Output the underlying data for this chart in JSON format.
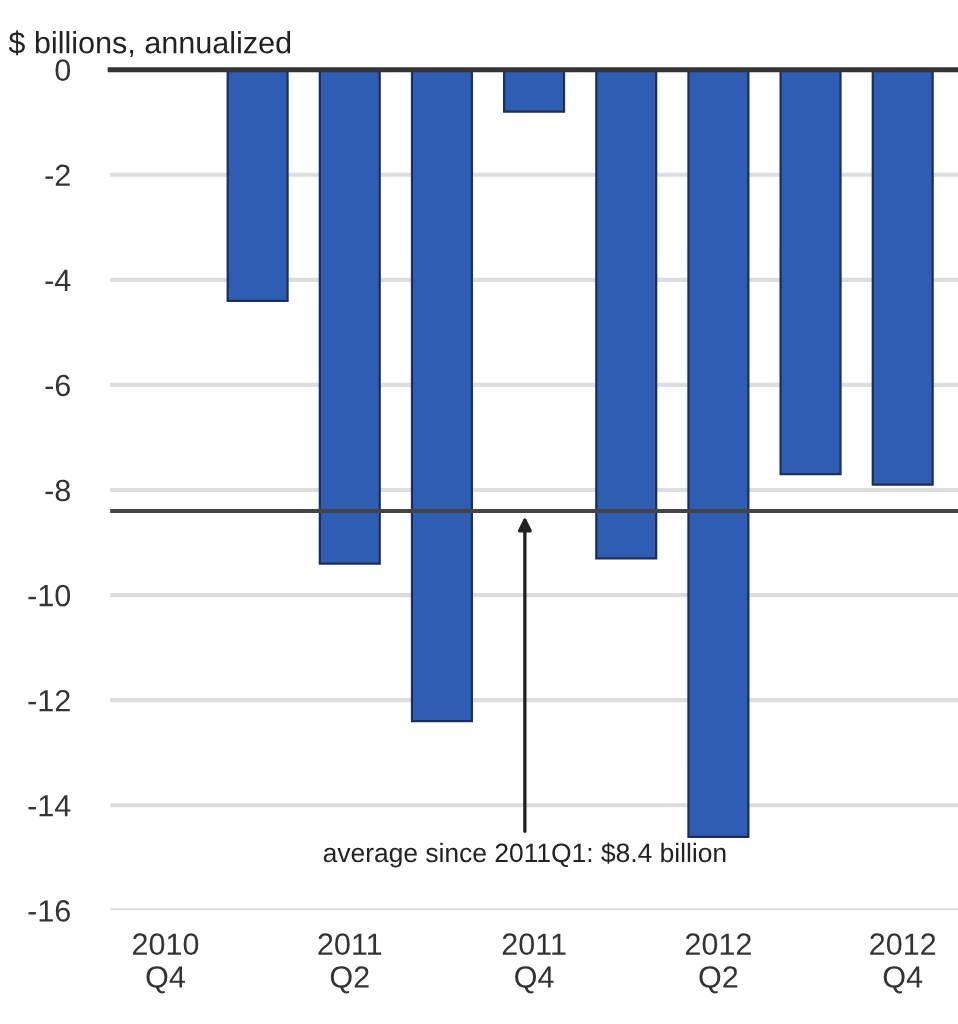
{
  "chart_data": {
    "type": "bar",
    "ylabel": "$ billions, annualized",
    "categories": [
      "2010\nQ4",
      null,
      "2011\nQ2",
      null,
      "2011\nQ4",
      null,
      "2012\nQ2",
      null,
      "2012\nQ4"
    ],
    "values": [
      null,
      -4.4,
      -9.4,
      -12.4,
      -0.8,
      -9.3,
      -14.6,
      -7.7,
      -7.9
    ],
    "color": "#2f5db3",
    "ylim": [
      -16,
      0
    ],
    "yticks": [
      {
        "value": 0,
        "label": "0"
      },
      {
        "value": -2,
        "label": "-2"
      },
      {
        "value": -4,
        "label": "-4"
      },
      {
        "value": -6,
        "label": "-6"
      },
      {
        "value": -8,
        "label": "-8"
      },
      {
        "value": -10,
        "label": "-10"
      },
      {
        "value": -12,
        "label": "-12"
      },
      {
        "value": -14,
        "label": "-14"
      },
      {
        "value": -16,
        "label": "-16"
      }
    ],
    "grid": "y",
    "ref_lines": [
      {
        "axis": "y",
        "value": -8.4,
        "color": "#444444"
      }
    ],
    "annotations": [
      "average since 2011Q1: $8.4 billion"
    ]
  }
}
